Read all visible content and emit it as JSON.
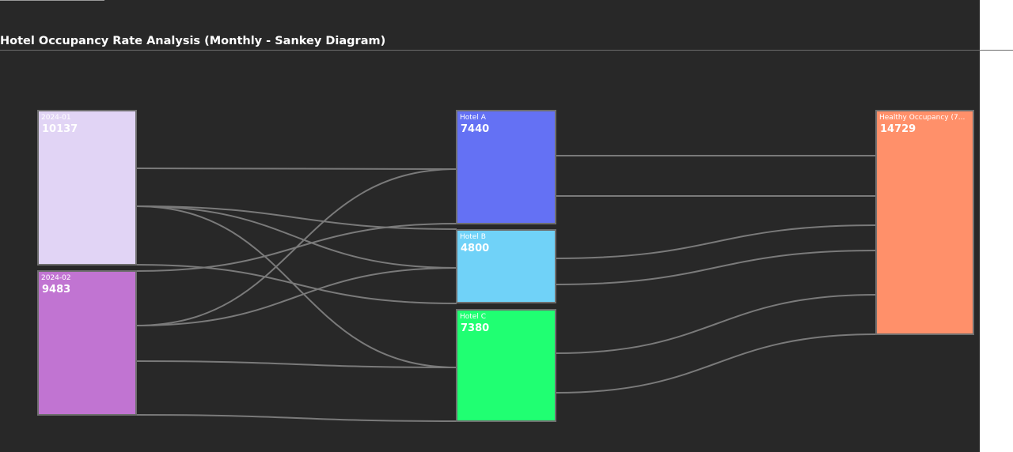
{
  "page": {
    "title": "Hotel Occupancy Rate Analysis (Monthly - Sankey Diagram)"
  },
  "colors": {
    "background": "#282828",
    "link": "#7a7a7a",
    "node_border": "#6e6e6e",
    "text": "#ffffff"
  },
  "chart_data": {
    "type": "sankey",
    "nodes": [
      {
        "id": "2024-01",
        "label": "2024-01",
        "value": "10137",
        "color": "#e1d4f5"
      },
      {
        "id": "2024-02",
        "label": "2024-02",
        "value": "9483",
        "color": "#c174d2"
      },
      {
        "id": "Hotel A",
        "label": "Hotel A",
        "value": "7440",
        "color": "#6471f4"
      },
      {
        "id": "Hotel B",
        "label": "Hotel B",
        "value": "4800",
        "color": "#70d2f8"
      },
      {
        "id": "Hotel C",
        "label": "Hotel C",
        "value": "7380",
        "color": "#20ff72"
      },
      {
        "id": "Healthy Occupancy",
        "label": "Healthy Occupancy (7...",
        "value": "14729",
        "color": "#ff906a"
      }
    ],
    "links": [
      {
        "source": "2024-01",
        "target": "Hotel A"
      },
      {
        "source": "2024-01",
        "target": "Hotel B"
      },
      {
        "source": "2024-01",
        "target": "Hotel B"
      },
      {
        "source": "2024-01",
        "target": "Hotel C"
      },
      {
        "source": "2024-01",
        "target": "Hotel C"
      },
      {
        "source": "2024-02",
        "target": "Hotel A"
      },
      {
        "source": "2024-02",
        "target": "Hotel A"
      },
      {
        "source": "2024-02",
        "target": "Hotel B"
      },
      {
        "source": "2024-02",
        "target": "Hotel C"
      },
      {
        "source": "2024-02",
        "target": "Hotel C"
      },
      {
        "source": "Hotel A",
        "target": "Healthy Occupancy"
      },
      {
        "source": "Hotel A",
        "target": "Healthy Occupancy"
      },
      {
        "source": "Hotel B",
        "target": "Healthy Occupancy"
      },
      {
        "source": "Hotel B",
        "target": "Healthy Occupancy"
      },
      {
        "source": "Hotel C",
        "target": "Healthy Occupancy"
      },
      {
        "source": "Hotel C",
        "target": "Healthy Occupancy"
      }
    ]
  }
}
